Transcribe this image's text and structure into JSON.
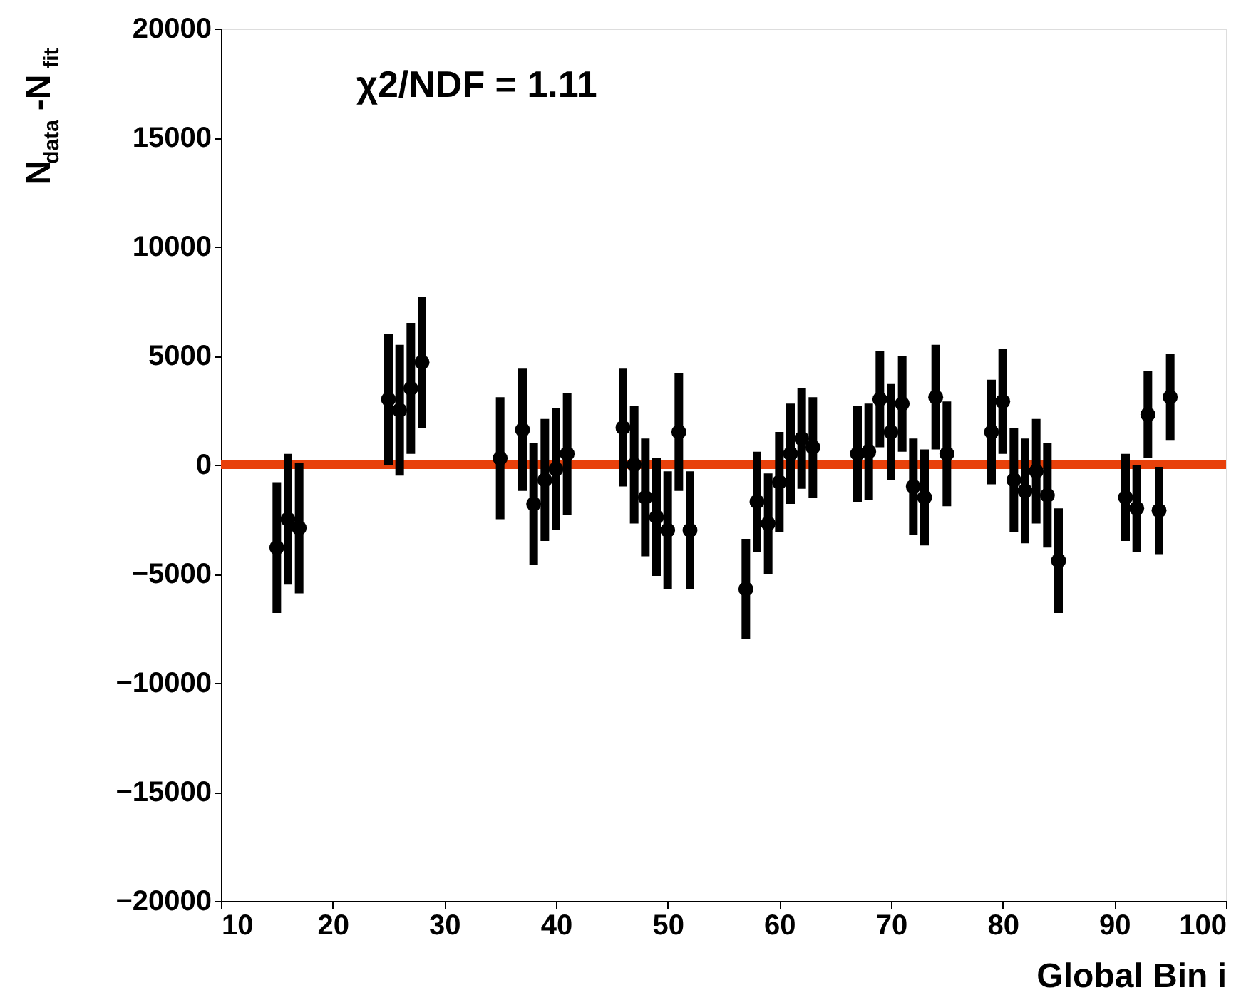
{
  "chart_data": {
    "type": "scatter",
    "xlabel": "Global Bin i",
    "ylabel": "N$_{data}$-N$_{fit}$",
    "annotations": [
      "χ2/NDF = 1.11"
    ],
    "x": [
      15,
      16,
      17,
      25,
      26,
      27,
      28,
      35,
      37,
      38,
      39,
      40,
      41,
      46,
      47,
      48,
      49,
      50,
      51,
      52,
      57,
      58,
      59,
      60,
      61,
      62,
      63,
      67,
      68,
      69,
      70,
      71,
      72,
      73,
      74,
      75,
      79,
      80,
      81,
      82,
      83,
      84,
      85,
      91,
      92,
      93,
      94,
      95
    ],
    "series": [
      {
        "color": "#000000",
        "values": [
          -3800,
          -2500,
          -2900,
          3000,
          2500,
          3500,
          4700,
          300,
          1600,
          -1800,
          -700,
          -200,
          500,
          1700,
          0,
          -1500,
          -2400,
          -3000,
          1500,
          -3000,
          -5700,
          -1700,
          -2700,
          -800,
          500,
          1200,
          800,
          500,
          600,
          3000,
          1500,
          2800,
          -1000,
          -1500,
          3100,
          500,
          1500,
          2900,
          -700,
          -1200,
          -300,
          -1400,
          -4400,
          -1500,
          -2000,
          2300,
          -2100,
          3100
        ],
        "errors": [
          3000,
          3000,
          3000,
          3000,
          3000,
          3000,
          3000,
          2800,
          2800,
          2800,
          2800,
          2800,
          2800,
          2700,
          2700,
          2700,
          2700,
          2700,
          2700,
          2700,
          2300,
          2300,
          2300,
          2300,
          2300,
          2300,
          2300,
          2200,
          2200,
          2200,
          2200,
          2200,
          2200,
          2200,
          2400,
          2400,
          2400,
          2400,
          2400,
          2400,
          2400,
          2400,
          2400,
          2000,
          2000,
          2000,
          2000,
          2000
        ],
        "xerrors": [
          0.5,
          0.5,
          0.5,
          0.5,
          0.5,
          0.5,
          0.5,
          0.5,
          0.5,
          0.5,
          0.5,
          0.5,
          0.5,
          0.5,
          0.5,
          0.5,
          0.5,
          0.5,
          0.5,
          0.5,
          0.5,
          0.5,
          0.5,
          0.5,
          0.5,
          0.5,
          0.5,
          0.5,
          0.5,
          0.5,
          0.5,
          0.5,
          0.5,
          0.5,
          0.5,
          0.5,
          0.5,
          0.5,
          0.5,
          0.5,
          0.5,
          0.5,
          0.5,
          0.5,
          0.5,
          0.5,
          0.5,
          0.5
        ]
      }
    ],
    "xlim": [
      10,
      100
    ],
    "xticks": [
      10,
      20,
      30,
      40,
      50,
      60,
      70,
      80,
      90,
      100
    ],
    "ylim": [
      -20000,
      20000
    ],
    "yticks": [
      -20000,
      -15000,
      -10000,
      -5000,
      0,
      5000,
      10000,
      15000,
      20000
    ],
    "ref_lines": [
      {
        "axis": "y",
        "value": 0,
        "color": "#e8410b"
      }
    ],
    "grid": false,
    "marker": "circle"
  }
}
